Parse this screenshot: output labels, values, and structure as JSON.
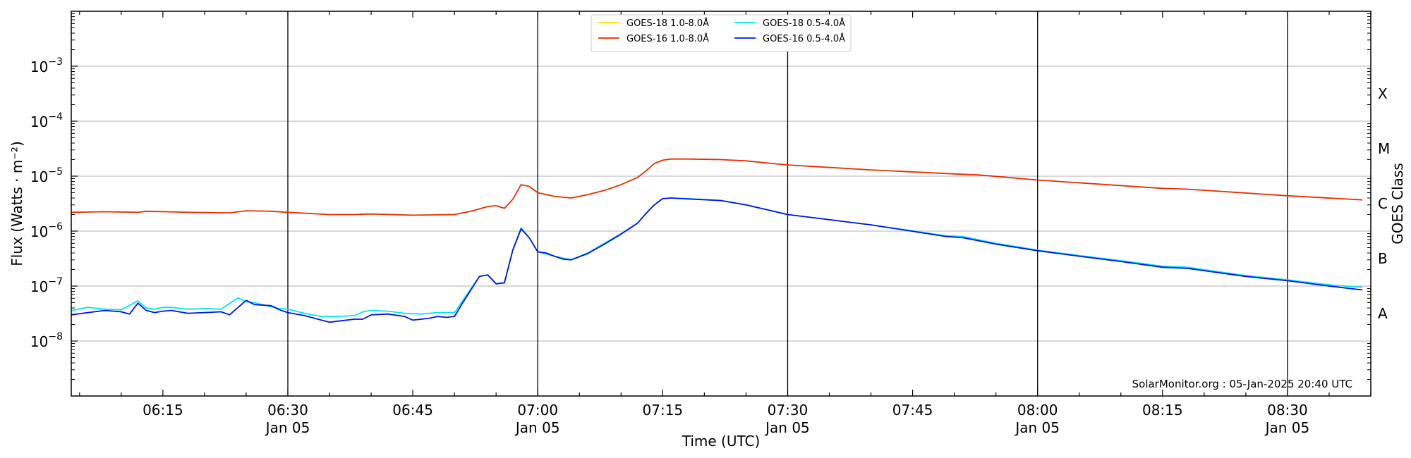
{
  "chart_data": {
    "type": "line",
    "xlabel": "Time (UTC)",
    "ylabel": "Flux (Watts · m⁻²)",
    "ylabel_right": "GOES Class",
    "y_scale": "log",
    "ylim": [
      1e-09,
      0.01
    ],
    "xlim": [
      "06:04",
      "08:40"
    ],
    "grid": "horizontal at decades",
    "y_ticks": [
      {
        "value": 1e-08,
        "base": "10",
        "exp": "−8"
      },
      {
        "value": 1e-07,
        "base": "10",
        "exp": "−7"
      },
      {
        "value": 1e-06,
        "base": "10",
        "exp": "−6"
      },
      {
        "value": 1e-05,
        "base": "10",
        "exp": "−5"
      },
      {
        "value": 0.0001,
        "base": "10",
        "exp": "−4"
      },
      {
        "value": 0.001,
        "base": "10",
        "exp": "−3"
      }
    ],
    "x_ticks": [
      {
        "time": "06:15",
        "label": "06:15",
        "date": ""
      },
      {
        "time": "06:30",
        "label": "06:30",
        "date": "Jan 05"
      },
      {
        "time": "06:45",
        "label": "06:45",
        "date": ""
      },
      {
        "time": "07:00",
        "label": "07:00",
        "date": "Jan 05"
      },
      {
        "time": "07:15",
        "label": "07:15",
        "date": ""
      },
      {
        "time": "07:30",
        "label": "07:30",
        "date": "Jan 05"
      },
      {
        "time": "07:45",
        "label": "07:45",
        "date": ""
      },
      {
        "time": "08:00",
        "label": "08:00",
        "date": "Jan 05"
      },
      {
        "time": "08:15",
        "label": "08:15",
        "date": ""
      },
      {
        "time": "08:30",
        "label": "08:30",
        "date": "Jan 05"
      }
    ],
    "vertical_lines": [
      "06:30",
      "07:00",
      "07:30",
      "08:00",
      "08:30"
    ],
    "goes_classes": [
      {
        "label": "A",
        "value": 3.16e-08
      },
      {
        "label": "B",
        "value": 3.16e-07
      },
      {
        "label": "C",
        "value": 3.16e-06
      },
      {
        "label": "M",
        "value": 3.16e-05
      },
      {
        "label": "X",
        "value": 0.000316
      }
    ],
    "legend": {
      "position": "top-center"
    },
    "annotation": "SolarMonitor.org : 05-Jan-2025 20:40 UTC",
    "series": [
      {
        "name": "GOES-18 1.0-8.0Å",
        "color": "#ffd700",
        "x": [],
        "y": []
      },
      {
        "name": "GOES-16 1.0-8.0Å",
        "color": "#e62e00",
        "x": [
          "06:04",
          "06:08",
          "06:12",
          "06:13",
          "06:18",
          "06:23",
          "06:25",
          "06:28",
          "06:30",
          "06:35",
          "06:38",
          "06:40",
          "06:45",
          "06:50",
          "06:52",
          "06:54",
          "06:55",
          "06:56",
          "06:57",
          "06:58",
          "06:59",
          "07:00",
          "07:02",
          "07:04",
          "07:06",
          "07:08",
          "07:10",
          "07:12",
          "07:13",
          "07:14",
          "07:15",
          "07:16",
          "07:18",
          "07:22",
          "07:25",
          "07:30",
          "07:40",
          "07:50",
          "07:53",
          "08:00",
          "08:15",
          "08:18",
          "08:30",
          "08:39"
        ],
        "y": [
          2.2e-06,
          2.25e-06,
          2.2e-06,
          2.3e-06,
          2.2e-06,
          2.15e-06,
          2.35e-06,
          2.3e-06,
          2.2e-06,
          2e-06,
          2e-06,
          2.05e-06,
          1.95e-06,
          2e-06,
          2.3e-06,
          2.8e-06,
          2.9e-06,
          2.6e-06,
          3.8e-06,
          7e-06,
          6.5e-06,
          5e-06,
          4.3e-06,
          4e-06,
          4.6e-06,
          5.5e-06,
          7e-06,
          9.5e-06,
          1.25e-05,
          1.7e-05,
          1.95e-05,
          2.05e-05,
          2.05e-05,
          2e-05,
          1.9e-05,
          1.6e-05,
          1.3e-05,
          1.1e-05,
          1.05e-05,
          8.5e-06,
          6e-06,
          5.8e-06,
          4.4e-06,
          3.7e-06
        ]
      },
      {
        "name": "GOES-18 0.5-4.0Å",
        "color": "#00e5ee",
        "x": [
          "06:04",
          "06:06",
          "06:08",
          "06:10",
          "06:12",
          "06:13",
          "06:14",
          "06:15",
          "06:16",
          "06:18",
          "06:20",
          "06:22",
          "06:24",
          "06:25",
          "06:26",
          "06:28",
          "06:29",
          "06:30",
          "06:32",
          "06:34",
          "06:36",
          "06:38",
          "06:39",
          "06:40",
          "06:42",
          "06:44",
          "06:46",
          "06:48",
          "06:50",
          "06:51",
          "06:53",
          "06:54",
          "06:55",
          "06:56",
          "06:57",
          "06:58",
          "06:59",
          "07:00",
          "07:02",
          "07:04",
          "07:06",
          "07:08",
          "07:10",
          "07:12",
          "07:13",
          "07:14",
          "07:15",
          "07:16",
          "07:18",
          "07:22",
          "07:25",
          "07:30",
          "07:40",
          "07:49",
          "07:51",
          "07:55",
          "08:00",
          "08:05",
          "08:10",
          "08:15",
          "08:18",
          "08:25",
          "08:30",
          "08:35",
          "08:39"
        ],
        "y": [
          3.6e-08,
          4.1e-08,
          3.8e-08,
          3.7e-08,
          5.4e-08,
          4e-08,
          3.8e-08,
          4.1e-08,
          4.1e-08,
          3.8e-08,
          3.9e-08,
          3.8e-08,
          6.1e-08,
          5.2e-08,
          5e-08,
          4.2e-08,
          3.9e-08,
          3.8e-08,
          3.2e-08,
          2.8e-08,
          2.8e-08,
          2.9e-08,
          3.4e-08,
          3.6e-08,
          3.5e-08,
          3.2e-08,
          3.1e-08,
          3.3e-08,
          3.3e-08,
          5.5e-08,
          1.5e-07,
          1.6e-07,
          1.1e-07,
          1.15e-07,
          4.5e-07,
          1.15e-06,
          7.5e-07,
          4.2e-07,
          3.5e-07,
          3e-07,
          4e-07,
          6e-07,
          9e-07,
          1.4e-06,
          2.1e-06,
          3e-06,
          3.9e-06,
          4e-06,
          3.9e-06,
          3.6e-06,
          3e-06,
          2e-06,
          1.3e-06,
          8.2e-07,
          8e-07,
          6e-07,
          4.5e-07,
          3.6e-07,
          2.9e-07,
          2.3e-07,
          2.2e-07,
          1.55e-07,
          1.3e-07,
          1.05e-07,
          9.5e-08
        ]
      },
      {
        "name": "GOES-16 0.5-4.0Å",
        "color": "#0014e6",
        "x": [
          "06:04",
          "06:06",
          "06:08",
          "06:10",
          "06:11",
          "06:12",
          "06:13",
          "06:14",
          "06:15",
          "06:16",
          "06:18",
          "06:20",
          "06:22",
          "06:23",
          "06:25",
          "06:26",
          "06:28",
          "06:29",
          "06:30",
          "06:32",
          "06:34",
          "06:35",
          "06:36",
          "06:38",
          "06:39",
          "06:40",
          "06:42",
          "06:44",
          "06:45",
          "06:46",
          "06:47",
          "06:48",
          "06:49",
          "06:50",
          "06:51",
          "06:53",
          "06:54",
          "06:55",
          "06:56",
          "06:57",
          "06:58",
          "06:59",
          "07:00",
          "07:01",
          "07:02",
          "07:03",
          "07:04",
          "07:06",
          "07:08",
          "07:10",
          "07:12",
          "07:13",
          "07:14",
          "07:15",
          "07:16",
          "07:18",
          "07:22",
          "07:25",
          "07:30",
          "07:40",
          "07:49",
          "07:51",
          "07:55",
          "08:00",
          "08:05",
          "08:10",
          "08:15",
          "08:18",
          "08:25",
          "08:30",
          "08:35",
          "08:39"
        ],
        "y": [
          3e-08,
          3.3e-08,
          3.6e-08,
          3.4e-08,
          3.1e-08,
          4.9e-08,
          3.6e-08,
          3.3e-08,
          3.5e-08,
          3.6e-08,
          3.2e-08,
          3.3e-08,
          3.4e-08,
          3e-08,
          5.5e-08,
          4.6e-08,
          4.4e-08,
          3.7e-08,
          3.3e-08,
          2.9e-08,
          2.4e-08,
          2.2e-08,
          2.3e-08,
          2.5e-08,
          2.5e-08,
          3e-08,
          3.1e-08,
          2.8e-08,
          2.4e-08,
          2.5e-08,
          2.6e-08,
          2.8e-08,
          2.7e-08,
          2.8e-08,
          5e-08,
          1.5e-07,
          1.6e-07,
          1.1e-07,
          1.15e-07,
          4.5e-07,
          1.1e-06,
          7.5e-07,
          4.2e-07,
          4e-07,
          3.5e-07,
          3.1e-07,
          3e-07,
          3.9e-07,
          5.8e-07,
          8.8e-07,
          1.4e-06,
          2.1e-06,
          3e-06,
          3.9e-06,
          4e-06,
          3.85e-06,
          3.6e-06,
          3e-06,
          2e-06,
          1.3e-06,
          8e-07,
          7.6e-07,
          5.8e-07,
          4.4e-07,
          3.5e-07,
          2.8e-07,
          2.2e-07,
          2.1e-07,
          1.5e-07,
          1.25e-07,
          1e-07,
          8.5e-08
        ]
      }
    ]
  }
}
